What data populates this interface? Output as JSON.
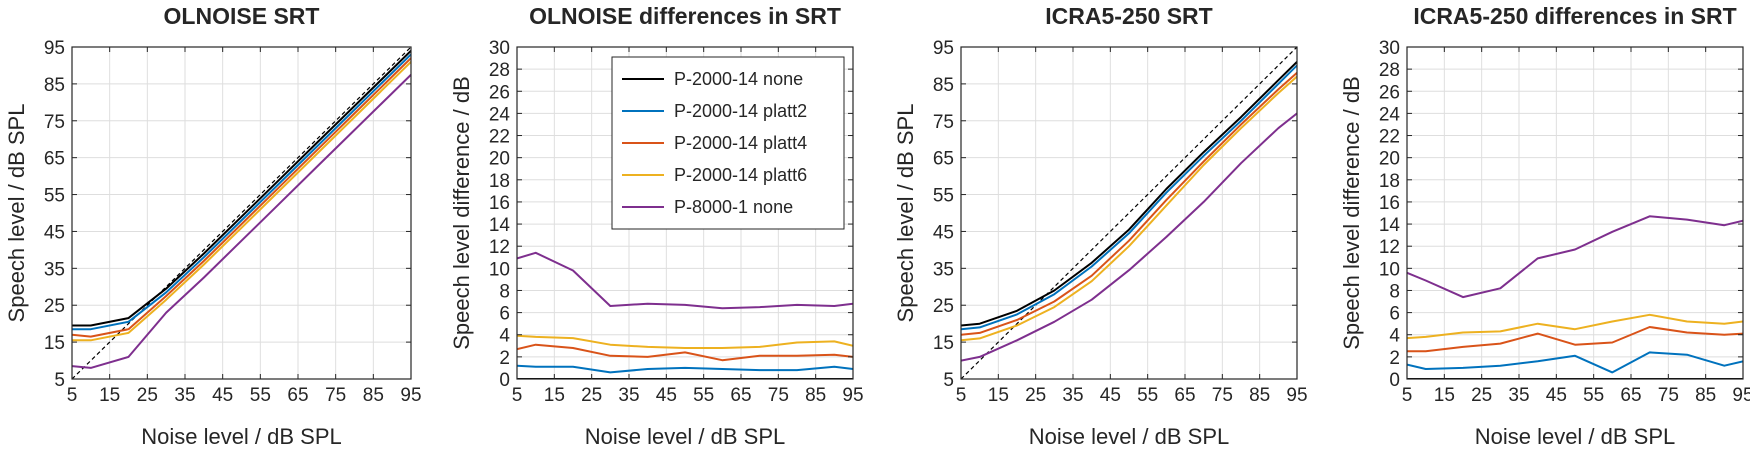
{
  "chart_data": [
    {
      "type": "line",
      "title": "OLNOISE SRT",
      "xlabel": "Noise level / dB SPL",
      "ylabel": "Speech level / dB SPL",
      "xlim": [
        5,
        95
      ],
      "ylim": [
        5,
        95
      ],
      "xticks": [
        5,
        15,
        25,
        35,
        45,
        55,
        65,
        75,
        85,
        95
      ],
      "yticks": [
        5,
        15,
        25,
        35,
        45,
        55,
        65,
        75,
        85,
        95
      ],
      "grid": true,
      "reference_line": {
        "style": "dashed",
        "color": "#000000",
        "x": [
          5,
          95
        ],
        "y": [
          5,
          95
        ]
      },
      "x": [
        5,
        10,
        20,
        30,
        40,
        50,
        60,
        70,
        80,
        90,
        95
      ],
      "series": [
        {
          "name": "P-2000-14 none",
          "color": "#000000",
          "values": [
            19.5,
            19.5,
            21.5,
            29.5,
            39,
            49,
            59,
            69,
            79,
            89,
            94
          ]
        },
        {
          "name": "P-2000-14 platt2",
          "color": "#0072BD",
          "values": [
            18.5,
            18.5,
            20.5,
            28.5,
            38,
            48,
            58,
            68,
            78,
            88,
            93
          ]
        },
        {
          "name": "P-2000-14 platt4",
          "color": "#D95319",
          "values": [
            17,
            16.5,
            18.5,
            27.5,
            37,
            47,
            57,
            67,
            77,
            87,
            92
          ]
        },
        {
          "name": "P-2000-14 platt6",
          "color": "#EDB120",
          "values": [
            15.5,
            15.5,
            17.5,
            26.5,
            36,
            46,
            56,
            66,
            76,
            86,
            91
          ]
        },
        {
          "name": "P-8000-1 none",
          "color": "#7E2F8E",
          "values": [
            8.5,
            8,
            11,
            23,
            32.5,
            42.5,
            52.5,
            62.5,
            72.5,
            82.5,
            87.5
          ]
        }
      ]
    },
    {
      "type": "line",
      "title": "OLNOISE differences in SRT",
      "xlabel": "Noise level / dB SPL",
      "ylabel": "Speech level difference / dB",
      "xlim": [
        5,
        95
      ],
      "ylim": [
        0,
        30
      ],
      "xticks": [
        5,
        15,
        25,
        35,
        45,
        55,
        65,
        75,
        85,
        95
      ],
      "yticks": [
        0,
        2,
        4,
        6,
        8,
        10,
        12,
        14,
        16,
        18,
        20,
        22,
        24,
        26,
        28,
        30
      ],
      "grid": true,
      "legend": "top-right",
      "x": [
        5,
        10,
        20,
        30,
        40,
        50,
        60,
        70,
        80,
        90,
        95
      ],
      "series": [
        {
          "name": "P-2000-14 none",
          "color": "#000000",
          "values": [
            0,
            0,
            0,
            0,
            0,
            0,
            0,
            0,
            0,
            0,
            0
          ]
        },
        {
          "name": "P-2000-14 platt2",
          "color": "#0072BD",
          "values": [
            1.2,
            1.1,
            1.1,
            0.6,
            0.9,
            1.0,
            0.9,
            0.8,
            0.8,
            1.1,
            0.9
          ]
        },
        {
          "name": "P-2000-14 platt4",
          "color": "#D95319",
          "values": [
            2.7,
            3.1,
            2.8,
            2.1,
            2.0,
            2.4,
            1.7,
            2.1,
            2.1,
            2.2,
            2.0
          ]
        },
        {
          "name": "P-2000-14 platt6",
          "color": "#EDB120",
          "values": [
            3.9,
            3.8,
            3.7,
            3.1,
            2.9,
            2.8,
            2.8,
            2.9,
            3.3,
            3.4,
            3.0
          ]
        },
        {
          "name": "P-8000-1 none",
          "color": "#7E2F8E",
          "values": [
            10.9,
            11.4,
            9.8,
            6.6,
            6.8,
            6.7,
            6.4,
            6.5,
            6.7,
            6.6,
            6.8
          ]
        }
      ]
    },
    {
      "type": "line",
      "title": "ICRA5-250 SRT",
      "xlabel": "Noise level / dB SPL",
      "ylabel": "Speech level / dB SPL",
      "xlim": [
        5,
        95
      ],
      "ylim": [
        5,
        95
      ],
      "xticks": [
        5,
        15,
        25,
        35,
        45,
        55,
        65,
        75,
        85,
        95
      ],
      "yticks": [
        5,
        15,
        25,
        35,
        45,
        55,
        65,
        75,
        85,
        95
      ],
      "grid": true,
      "reference_line": {
        "style": "dashed",
        "color": "#000000",
        "x": [
          5,
          95
        ],
        "y": [
          5,
          95
        ]
      },
      "x": [
        5,
        10,
        20,
        30,
        40,
        50,
        60,
        70,
        80,
        90,
        95
      ],
      "series": [
        {
          "name": "P-2000-14 none",
          "color": "#000000",
          "values": [
            19.5,
            20,
            23.5,
            29,
            36.5,
            45.5,
            56.5,
            66.5,
            76,
            86,
            91
          ]
        },
        {
          "name": "P-2000-14 platt2",
          "color": "#0072BD",
          "values": [
            18.5,
            19,
            22.5,
            28,
            35.5,
            44.5,
            55.5,
            65.5,
            75,
            85,
            90
          ]
        },
        {
          "name": "P-2000-14 platt4",
          "color": "#D95319",
          "values": [
            17,
            17.5,
            21,
            26,
            33,
            42.5,
            53.5,
            64,
            74,
            83.5,
            88
          ]
        },
        {
          "name": "P-2000-14 platt6",
          "color": "#EDB120",
          "values": [
            15.5,
            16,
            19.5,
            24.5,
            31.5,
            41,
            52,
            63,
            73,
            82.5,
            87
          ]
        },
        {
          "name": "P-8000-1 none",
          "color": "#7E2F8E",
          "values": [
            10,
            11,
            15.5,
            20.5,
            26.5,
            34.5,
            43.5,
            53,
            63.5,
            73,
            77
          ]
        }
      ]
    },
    {
      "type": "line",
      "title": "ICRA5-250 differences in SRT",
      "xlabel": "Noise level / dB SPL",
      "ylabel": "Speech level difference / dB",
      "xlim": [
        5,
        95
      ],
      "ylim": [
        0,
        30
      ],
      "xticks": [
        5,
        15,
        25,
        35,
        45,
        55,
        65,
        75,
        85,
        95
      ],
      "yticks": [
        0,
        2,
        4,
        6,
        8,
        10,
        12,
        14,
        16,
        18,
        20,
        22,
        24,
        26,
        28,
        30
      ],
      "grid": true,
      "x": [
        5,
        10,
        20,
        30,
        40,
        50,
        60,
        70,
        80,
        90,
        95
      ],
      "series": [
        {
          "name": "P-2000-14 none",
          "color": "#000000",
          "values": [
            0,
            0,
            0,
            0,
            0,
            0,
            0,
            0,
            0,
            0,
            0
          ]
        },
        {
          "name": "P-2000-14 platt2",
          "color": "#0072BD",
          "values": [
            1.3,
            0.9,
            1.0,
            1.2,
            1.6,
            2.1,
            0.6,
            2.4,
            2.2,
            1.2,
            1.6
          ]
        },
        {
          "name": "P-2000-14 platt4",
          "color": "#D95319",
          "values": [
            2.5,
            2.5,
            2.9,
            3.2,
            4.1,
            3.1,
            3.3,
            4.7,
            4.2,
            4.0,
            4.1
          ]
        },
        {
          "name": "P-2000-14 platt6",
          "color": "#EDB120",
          "values": [
            3.7,
            3.8,
            4.2,
            4.3,
            5.0,
            4.5,
            5.2,
            5.8,
            5.2,
            5.0,
            5.2
          ]
        },
        {
          "name": "P-8000-1 none",
          "color": "#7E2F8E",
          "values": [
            9.6,
            8.9,
            7.4,
            8.2,
            10.9,
            11.7,
            13.3,
            14.7,
            14.4,
            13.9,
            14.3
          ]
        }
      ]
    }
  ]
}
